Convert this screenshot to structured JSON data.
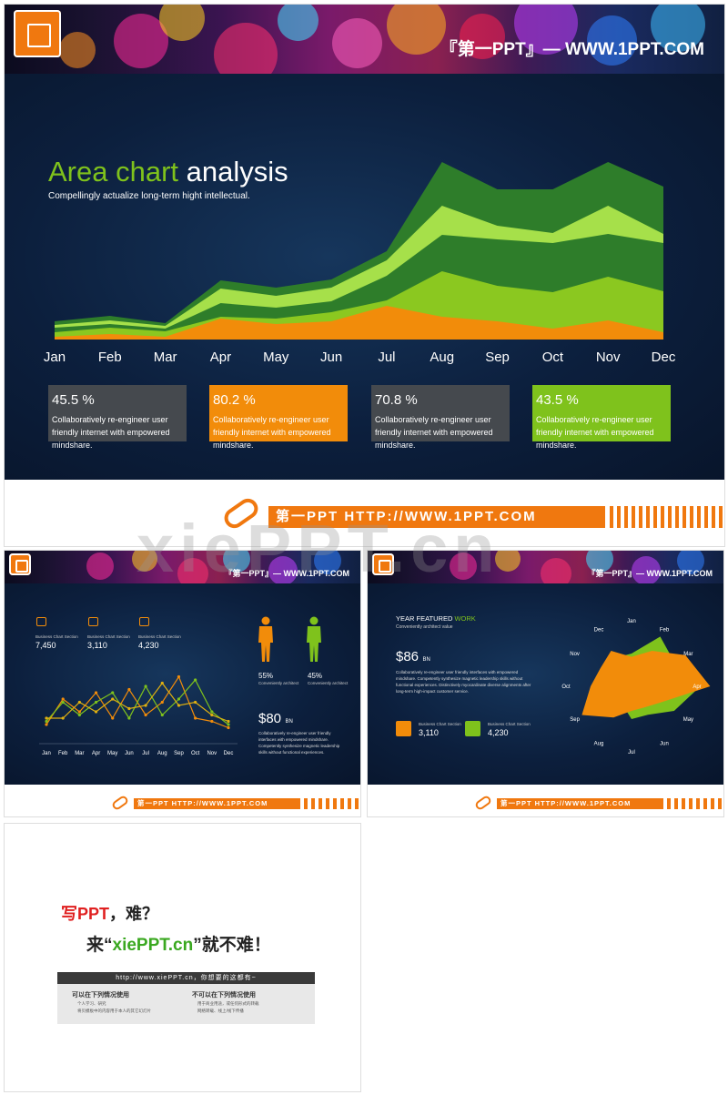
{
  "slide1": {
    "header": "『第一PPT』— WWW.1PPT.COM",
    "title_green": "Area chart",
    "title_white": "analysis",
    "subtitle": "Compellingly actualize long-term hight intellectual.",
    "footer": "第一PPT HTTP://WWW.1PPT.COM",
    "cards": [
      {
        "pct": "45.5 %",
        "desc": "Collaboratively re-engineer user friendly internet with empowered mindshare.",
        "color": "#45494e"
      },
      {
        "pct": "80.2 %",
        "desc": "Collaboratively re-engineer user friendly internet with empowered mindshare.",
        "color": "#f28c0a"
      },
      {
        "pct": "70.8 %",
        "desc": "Collaboratively re-engineer user friendly internet with empowered mindshare.",
        "color": "#45494e"
      },
      {
        "pct": "43.5 %",
        "desc": "Collaboratively re-engineer user friendly internet with empowered mindshare.",
        "color": "#7fc21c"
      }
    ]
  },
  "slide2": {
    "header": "『第一PPT』— WWW.1PPT.COM",
    "footer": "第一PPT HTTP://WWW.1PPT.COM",
    "stats": [
      {
        "icon": "bag-icon",
        "label": "Business Chart Section",
        "value": "7,450"
      },
      {
        "icon": "folder-icon",
        "label": "Business Chart Section",
        "value": "3,110"
      },
      {
        "icon": "paper-plane-icon",
        "label": "Business Chart Section",
        "value": "4,230"
      }
    ],
    "male_pct": "55%",
    "female_pct": "45%",
    "person_label": "Conveniently architect",
    "price": "$80",
    "price_unit": "BN",
    "price_desc": "Collaboratively re-engineer user friendly interfaces with empowered mindshare. Competently synthesize magnetic leadership skills without functional experiences."
  },
  "slide3": {
    "header": "『第一PPT』— WWW.1PPT.COM",
    "footer": "第一PPT HTTP://WWW.1PPT.COM",
    "title_white": "YEAR FEATURED",
    "title_green": "WORK",
    "subtitle": "Conveniently architect value",
    "price": "$86",
    "price_unit": "BN",
    "price_desc": "Collaboratively re-engineer user friendly interfaces with empowered mindshare. Competently synthesize magnetic leadership skills without functional experiences. Distinctively myocardinate diverse alignments after long-term high-impact customer service.",
    "stats": [
      {
        "label": "Business Chart Section",
        "value": "3,110",
        "color": "#f28c0a"
      },
      {
        "label": "Business Chart Section",
        "value": "4,230",
        "color": "#7fc21c"
      }
    ]
  },
  "slide4": {
    "line1_red": "写PPT",
    "line1_rest": "，难？",
    "line2_pre": "来“",
    "line2_green": "xiePPT.cn",
    "line2_post": "”就不难！",
    "bar": "http://www.xiePPT.cn，你想要的这都有~",
    "can_title": "可以在下列情况使用",
    "can_items": [
      "个人学习、研究",
      "将贝模板中的内容用于本人的其它幻灯片"
    ],
    "cannot_title": "不可以在下列情况使用",
    "cannot_items": [
      "用于商业用途，或任何形式的转载",
      "网络转载、线上/线下传播"
    ]
  },
  "watermark": "xiePPT.cn",
  "chart_data": [
    {
      "type": "area",
      "categories": [
        "Jan",
        "Feb",
        "Mar",
        "Apr",
        "May",
        "Jun",
        "Jul",
        "Aug",
        "Sep",
        "Oct",
        "Nov",
        "Dec"
      ],
      "series": [
        {
          "color": "#2e7d2a",
          "values": [
            20,
            26,
            18,
            65,
            57,
            66,
            97,
            195,
            165,
            165,
            195,
            168
          ]
        },
        {
          "color": "#a6e04a",
          "values": [
            16,
            21,
            15,
            56,
            48,
            57,
            87,
            147,
            125,
            117,
            147,
            116
          ]
        },
        {
          "color": "#2e7d2a",
          "values": [
            13,
            17,
            12,
            40,
            35,
            42,
            70,
            115,
            110,
            106,
            116,
            106
          ]
        },
        {
          "color": "#8bc820",
          "values": [
            8,
            13,
            9,
            25,
            23,
            30,
            43,
            75,
            59,
            52,
            69,
            53
          ]
        },
        {
          "color": "#f28c0a",
          "values": [
            3,
            6,
            3,
            23,
            17,
            20,
            37,
            25,
            20,
            12,
            21,
            8
          ]
        }
      ],
      "ylim": [
        0,
        210
      ]
    },
    {
      "type": "line",
      "categories": [
        "Jan",
        "Feb",
        "Mar",
        "Apr",
        "May",
        "Jun",
        "Jul",
        "Aug",
        "Sep",
        "Oct",
        "Nov",
        "Dec"
      ],
      "series": [
        {
          "color": "#f28c0a",
          "values": [
            20,
            60,
            40,
            70,
            30,
            75,
            35,
            55,
            95,
            30,
            25,
            15
          ]
        },
        {
          "color": "#7fc21c",
          "values": [
            25,
            55,
            35,
            55,
            70,
            30,
            80,
            35,
            60,
            90,
            40,
            20
          ]
        },
        {
          "color": "#e0b010",
          "values": [
            30,
            30,
            55,
            40,
            60,
            45,
            50,
            85,
            50,
            55,
            35,
            25
          ]
        }
      ],
      "ylim": [
        0,
        110
      ]
    },
    {
      "type": "radar",
      "categories": [
        "Jan",
        "Feb",
        "Mar",
        "Apr",
        "May",
        "Jun",
        "Jul",
        "Aug",
        "Sep",
        "Oct",
        "Nov",
        "Dec"
      ],
      "series": [
        {
          "color": "#7fc21c",
          "values": [
            20,
            35,
            30,
            42,
            30,
            20,
            20,
            12,
            18,
            15,
            18,
            20
          ]
        },
        {
          "color": "#f28c0a",
          "values": [
            18,
            25,
            38,
            48,
            20,
            15,
            15,
            22,
            35,
            25,
            22,
            25
          ]
        }
      ]
    }
  ]
}
